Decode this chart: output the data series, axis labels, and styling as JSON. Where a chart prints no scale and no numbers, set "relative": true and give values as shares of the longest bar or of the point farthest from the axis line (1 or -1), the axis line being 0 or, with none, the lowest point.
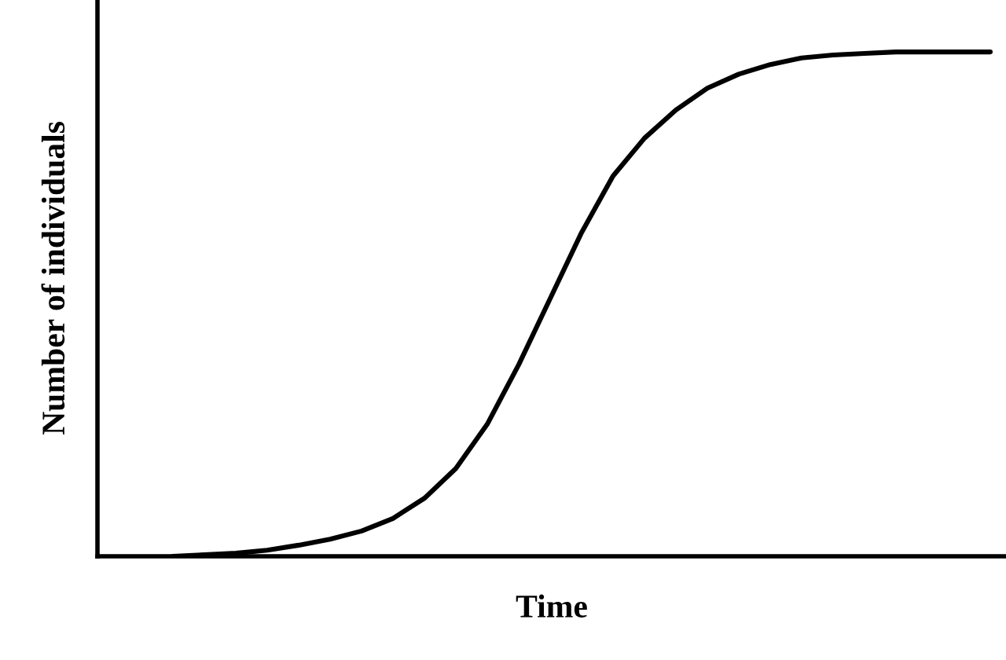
{
  "chart_data": {
    "type": "line",
    "relative": true,
    "xlabel": "Time",
    "ylabel": "Number of individuals",
    "categories": [
      null,
      null,
      null,
      null,
      null,
      null,
      null,
      null,
      null,
      null,
      null,
      null,
      null,
      null,
      null,
      null,
      null,
      null,
      null,
      null,
      null,
      null,
      null,
      null,
      null,
      null,
      null
    ],
    "series": [
      {
        "color": "#000000",
        "values": [
          0.0,
          0.003,
          0.006,
          0.012,
          0.022,
          0.034,
          0.05,
          0.075,
          0.115,
          0.174,
          0.262,
          0.38,
          0.511,
          0.642,
          0.754,
          0.829,
          0.885,
          0.928,
          0.956,
          0.975,
          0.988,
          0.994,
          0.997,
          1.0,
          1.0,
          1.0,
          1.0
        ]
      }
    ],
    "grid": false,
    "legend": false,
    "marker": "none",
    "line_style": "solid"
  }
}
